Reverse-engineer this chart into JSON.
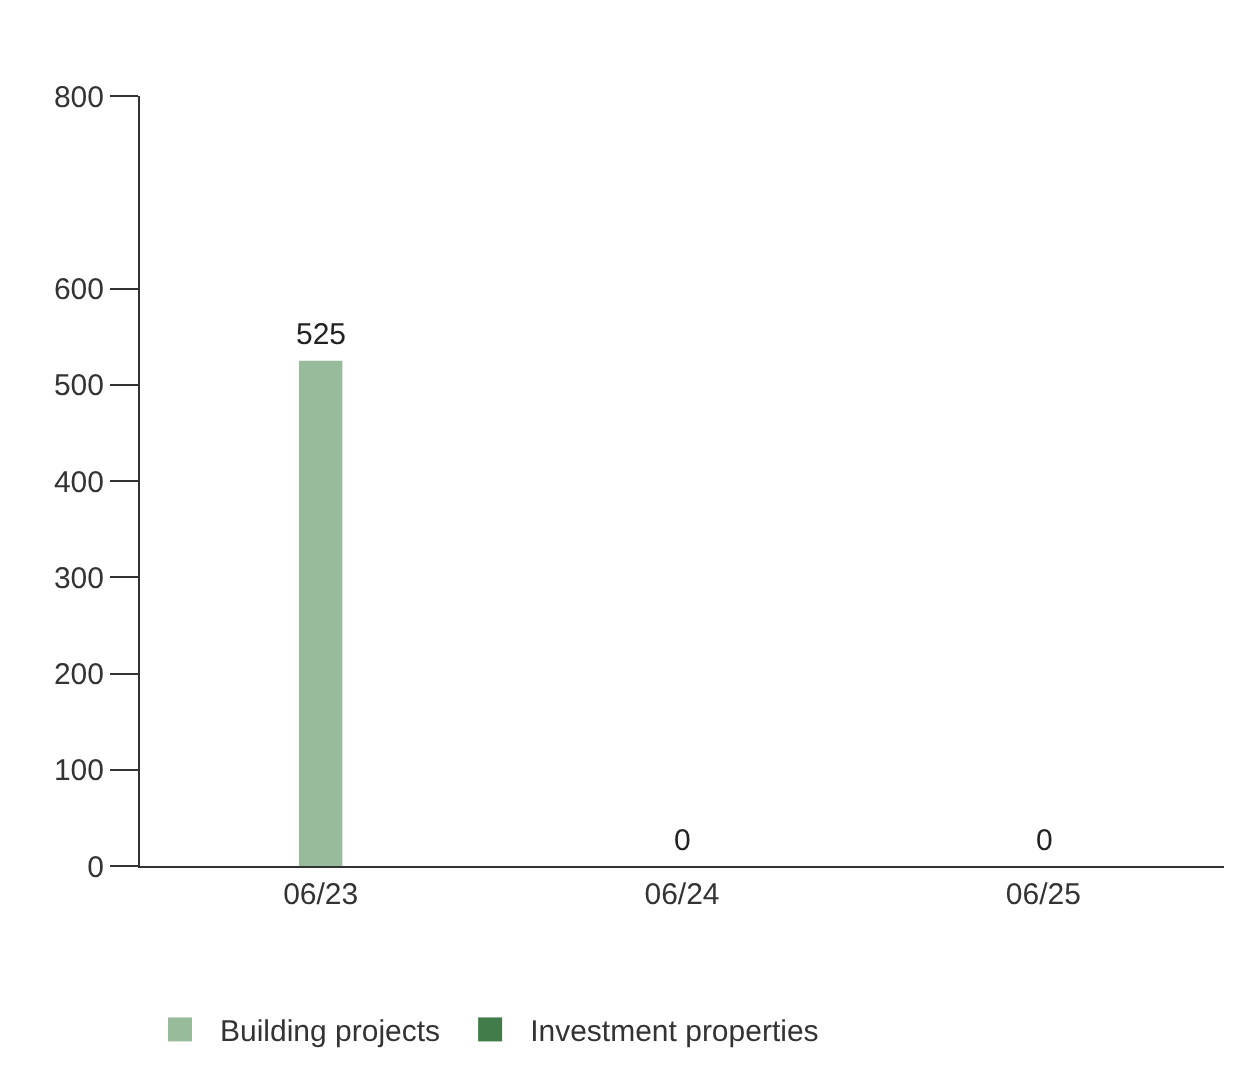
{
  "chart_data": {
    "type": "bar",
    "stacked": true,
    "categories": [
      "06/23",
      "06/24",
      "06/25"
    ],
    "series": [
      {
        "name": "Building projects",
        "color": "#97bb9b",
        "values": [
          525,
          0,
          0
        ]
      },
      {
        "name": "Investment properties",
        "color": "#427c4a",
        "values": [
          0,
          0,
          0
        ]
      }
    ],
    "totals": [
      "525",
      "0",
      "0"
    ],
    "ylim": [
      0,
      800
    ],
    "yticks": [
      0,
      100,
      200,
      300,
      400,
      500,
      600,
      800
    ],
    "grid": false,
    "legend": "bottom"
  }
}
